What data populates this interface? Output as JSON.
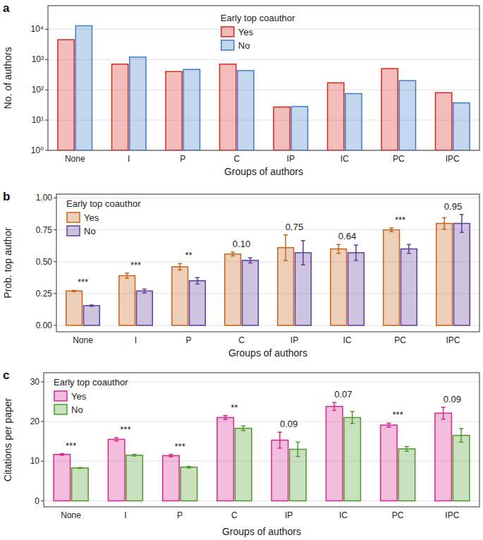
{
  "chart_data": [
    {
      "type": "bar",
      "title": "a",
      "y_label": "No. of authors",
      "x_label": "Groups of authors",
      "legend_title": "Early top coauthor",
      "legend": "top",
      "log": "y",
      "grid": true,
      "categories": [
        "None",
        "I",
        "P",
        "C",
        "IP",
        "IC",
        "PC",
        "IPC"
      ],
      "series": [
        {
          "name": "Yes",
          "color": "#d7261e",
          "values": [
            4500,
            700,
            400,
            700,
            27,
            170,
            500,
            80
          ]
        },
        {
          "name": "No",
          "color": "#3d7cc9",
          "values": [
            13000,
            1200,
            470,
            430,
            28,
            75,
            200,
            37
          ]
        }
      ],
      "ylim": [
        1,
        60000
      ],
      "yticks": [
        {
          "value": 1,
          "label": "10⁰"
        },
        {
          "value": 10,
          "label": "10¹"
        },
        {
          "value": 100,
          "label": "10²"
        },
        {
          "value": 1000,
          "label": "10³"
        },
        {
          "value": 10000,
          "label": "10⁴"
        }
      ]
    },
    {
      "type": "bar",
      "title": "b",
      "y_label": "Prob. top author",
      "x_label": "Groups of authors",
      "legend_title": "Early top coauthor",
      "legend": "top-left",
      "grid": true,
      "categories": [
        "None",
        "I",
        "P",
        "C",
        "IP",
        "IC",
        "PC",
        "IPC"
      ],
      "series": [
        {
          "name": "Yes",
          "color": "#c7651a",
          "values": [
            0.27,
            0.39,
            0.46,
            0.56,
            0.61,
            0.6,
            0.75,
            0.8
          ],
          "errors": [
            0.005,
            0.02,
            0.025,
            0.015,
            0.1,
            0.035,
            0.015,
            0.045
          ]
        },
        {
          "name": "No",
          "color": "#5e3c99",
          "values": [
            0.155,
            0.27,
            0.35,
            0.51,
            0.57,
            0.57,
            0.6,
            0.8
          ],
          "errors": [
            0.005,
            0.015,
            0.025,
            0.02,
            0.095,
            0.06,
            0.035,
            0.07
          ]
        }
      ],
      "annotations": [
        "***",
        "***",
        "**",
        "0.10",
        "0.75",
        "0.64",
        "***",
        "0.95"
      ],
      "ylim": [
        -0.05,
        1.03
      ],
      "yticks": [
        {
          "value": 0,
          "label": "0.00"
        },
        {
          "value": 0.25,
          "label": "0.25"
        },
        {
          "value": 0.5,
          "label": "0.50"
        },
        {
          "value": 0.75,
          "label": "0.75"
        },
        {
          "value": 1,
          "label": "1.00"
        }
      ]
    },
    {
      "type": "bar",
      "title": "c",
      "y_label": "Citations per paper",
      "x_label": "Groups of authors",
      "legend_title": "Early top coauthor",
      "legend": "top-left",
      "grid": true,
      "categories": [
        "None",
        "I",
        "P",
        "C",
        "IP",
        "IC",
        "PC",
        "IPC"
      ],
      "series": [
        {
          "name": "Yes",
          "color": "#d6268f",
          "values": [
            11.7,
            15.5,
            11.4,
            21.0,
            15.3,
            23.8,
            19.1,
            22.1
          ],
          "errors": [
            0.2,
            0.4,
            0.3,
            0.5,
            2.0,
            1.0,
            0.5,
            1.5
          ]
        },
        {
          "name": "No",
          "color": "#4d9a2a",
          "values": [
            8.3,
            11.5,
            8.5,
            18.3,
            13.0,
            21.0,
            13.1,
            16.5
          ],
          "errors": [
            0.1,
            0.2,
            0.2,
            0.6,
            1.8,
            1.5,
            0.6,
            1.7
          ]
        }
      ],
      "annotations": [
        "***",
        "***",
        "***",
        "**",
        "0.09",
        "0.07",
        "***",
        "0.09"
      ],
      "ylim": [
        -1.5,
        32.3
      ],
      "yticks": [
        0,
        10,
        20,
        30
      ]
    }
  ]
}
